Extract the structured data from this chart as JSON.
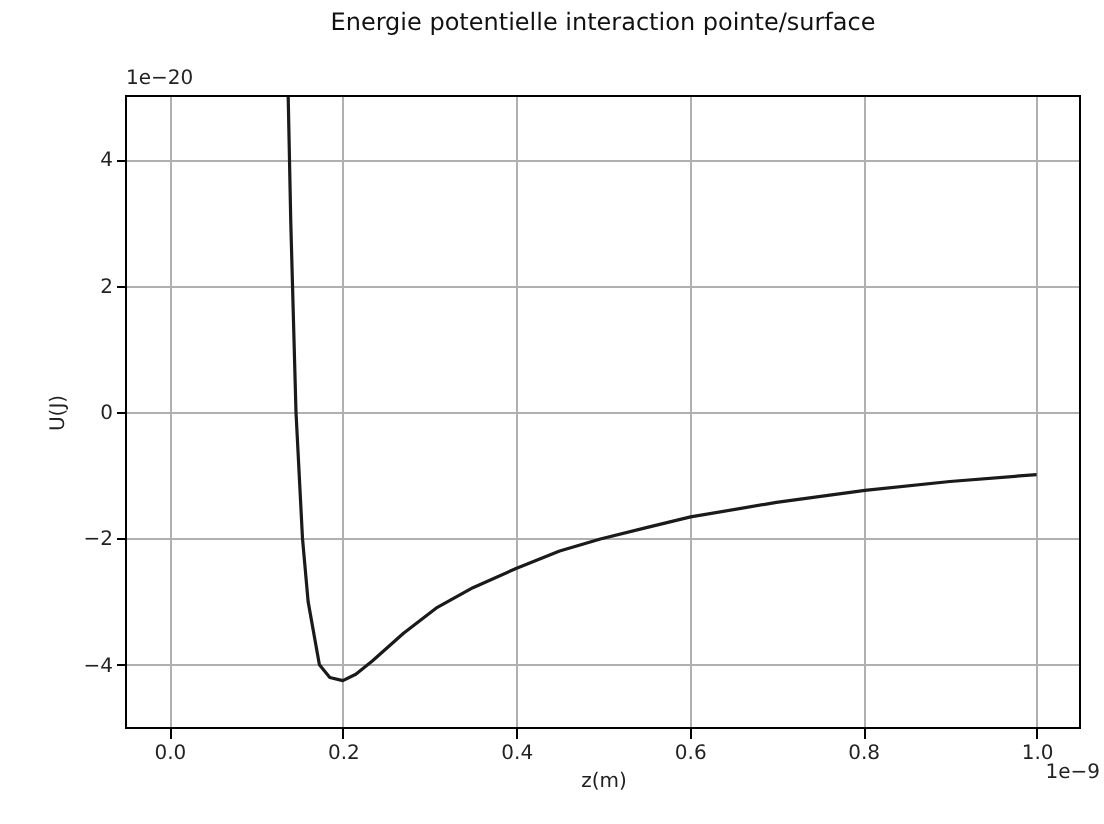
{
  "chart_data": {
    "type": "line",
    "title": "Energie potentielle interaction pointe/surface",
    "xlabel": "z(m)",
    "ylabel": "U(J)",
    "annotations": [
      "1e−20",
      "1e−9"
    ],
    "x": [
      0.137,
      0.14,
      0.142,
      0.146,
      0.1535,
      0.16,
      0.173,
      0.185,
      0.2,
      0.215,
      0.234,
      0.27,
      0.309,
      0.35,
      0.399,
      0.45,
      0.497,
      0.55,
      0.601,
      0.7,
      0.802,
      0.9,
      1.0
    ],
    "series": [
      {
        "color": "#1a1a1a",
        "values": [
          5,
          3,
          2,
          0,
          -2,
          -3,
          -4,
          -4.2,
          -4.25,
          -4.15,
          -3.94,
          -3.5,
          -3.09,
          -2.78,
          -2.48,
          -2.2,
          -2.01,
          -1.83,
          -1.66,
          -1.43,
          -1.24,
          -1.1,
          -0.99
        ]
      }
    ],
    "xlim": [
      -0.05,
      1.05
    ],
    "xticks": [
      {
        "value": 0,
        "label": "0.0"
      },
      0.2,
      0.4,
      0.6,
      0.8,
      {
        "value": 1,
        "label": "1.0"
      }
    ],
    "ylim": [
      -5,
      5
    ],
    "yticks": [
      {
        "value": -4,
        "label": "−4"
      },
      {
        "value": -2,
        "label": "−2"
      },
      0,
      2,
      4
    ],
    "grid": true,
    "marker": "none",
    "line_style": "solid"
  }
}
